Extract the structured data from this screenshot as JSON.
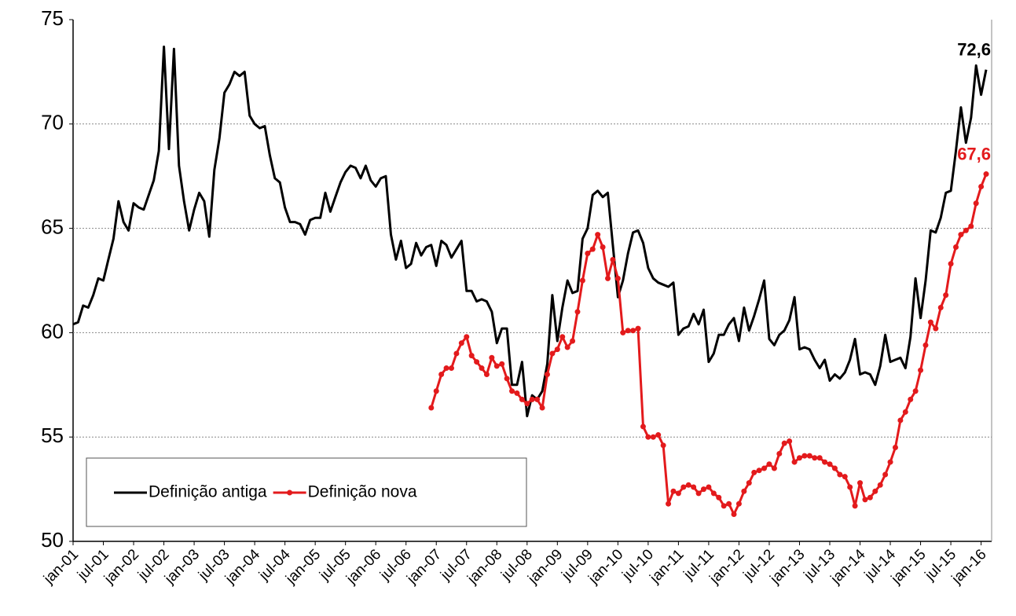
{
  "chart_data": {
    "type": "line",
    "categories": [
      "jan-01",
      null,
      null,
      null,
      null,
      null,
      "jul-01",
      null,
      null,
      null,
      null,
      null,
      "jan-02",
      null,
      null,
      null,
      null,
      null,
      "jul-02",
      null,
      null,
      null,
      null,
      null,
      "jan-03",
      null,
      null,
      null,
      null,
      null,
      "jul-03",
      null,
      null,
      null,
      null,
      null,
      "jan-04",
      null,
      null,
      null,
      null,
      null,
      "jul-04",
      null,
      null,
      null,
      null,
      null,
      "jan-05",
      null,
      null,
      null,
      null,
      null,
      "jul-05",
      null,
      null,
      null,
      null,
      null,
      "jan-06",
      null,
      null,
      null,
      null,
      null,
      "jul-06",
      null,
      null,
      null,
      null,
      null,
      "jan-07",
      null,
      null,
      null,
      null,
      null,
      "jul-07",
      null,
      null,
      null,
      null,
      null,
      "jan-08",
      null,
      null,
      null,
      null,
      null,
      "jul-08",
      null,
      null,
      null,
      null,
      null,
      "jan-09",
      null,
      null,
      null,
      null,
      null,
      "jul-09",
      null,
      null,
      null,
      null,
      null,
      "jan-10",
      null,
      null,
      null,
      null,
      null,
      "jul-10",
      null,
      null,
      null,
      null,
      null,
      "jan-11",
      null,
      null,
      null,
      null,
      null,
      "jul-11",
      null,
      null,
      null,
      null,
      null,
      "jan-12",
      null,
      null,
      null,
      null,
      null,
      "jul-12",
      null,
      null,
      null,
      null,
      null,
      "jan-13",
      null,
      null,
      null,
      null,
      null,
      "jul-13",
      null,
      null,
      null,
      null,
      null,
      "jan-14",
      null,
      null,
      null,
      null,
      null,
      "jul-14",
      null,
      null,
      null,
      null,
      null,
      "jan-15",
      null,
      null,
      null,
      null,
      null,
      "jul-15",
      null,
      null,
      null,
      null,
      null,
      "jan-16",
      null
    ],
    "series": [
      {
        "name": "Definição antiga",
        "color": "#000000",
        "markers": false,
        "values": [
          60.4,
          60.5,
          61.3,
          61.2,
          61.8,
          62.6,
          62.5,
          63.5,
          64.5,
          66.3,
          65.3,
          64.9,
          66.2,
          66.0,
          65.9,
          66.6,
          67.3,
          68.7,
          73.7,
          68.8,
          73.6,
          68.0,
          66.3,
          64.9,
          65.9,
          66.7,
          66.3,
          64.6,
          67.8,
          69.3,
          71.5,
          71.9,
          72.5,
          72.3,
          72.5,
          70.4,
          70.0,
          69.8,
          69.9,
          68.5,
          67.4,
          67.2,
          66.0,
          65.3,
          65.3,
          65.2,
          64.7,
          65.4,
          65.5,
          65.5,
          66.7,
          65.8,
          66.5,
          67.2,
          67.7,
          68.0,
          67.9,
          67.4,
          68.0,
          67.3,
          67.0,
          67.4,
          67.5,
          64.7,
          63.5,
          64.4,
          63.1,
          63.3,
          64.3,
          63.7,
          64.1,
          64.2,
          63.2,
          64.4,
          64.2,
          63.6,
          64.0,
          64.4,
          62.0,
          62.0,
          61.5,
          61.6,
          61.5,
          61.0,
          59.5,
          60.2,
          60.2,
          57.5,
          57.5,
          58.6,
          56.0,
          57.0,
          56.8,
          57.2,
          58.5,
          61.8,
          59.6,
          61.2,
          62.5,
          61.9,
          62.0,
          64.5,
          65.0,
          66.6,
          66.8,
          66.5,
          66.7,
          64.2,
          61.7,
          62.5,
          63.8,
          64.8,
          64.9,
          64.3,
          63.1,
          62.6,
          62.4,
          62.3,
          62.2,
          62.4,
          59.9,
          60.2,
          60.3,
          60.9,
          60.4,
          61.1,
          58.6,
          59.0,
          59.9,
          59.9,
          60.4,
          60.7,
          59.6,
          61.2,
          60.1,
          60.8,
          61.6,
          62.5,
          59.7,
          59.4,
          59.9,
          60.1,
          60.6,
          61.7,
          59.2,
          59.3,
          59.2,
          58.7,
          58.3,
          58.7,
          57.7,
          58.0,
          57.8,
          58.1,
          58.7,
          59.7,
          58.0,
          58.1,
          58.0,
          57.5,
          58.4,
          59.9,
          58.6,
          58.7,
          58.8,
          58.3,
          59.8,
          62.6,
          60.7,
          62.5,
          64.9,
          64.8,
          65.5,
          66.7,
          66.8,
          68.7,
          70.8,
          69.1,
          70.3,
          72.8,
          71.4,
          72.6
        ],
        "value_labels": [
          null,
          null,
          null,
          null,
          null,
          null,
          null,
          null,
          null,
          null,
          null,
          null,
          null,
          null,
          null,
          null,
          null,
          null,
          null,
          null,
          null,
          null,
          null,
          null,
          null,
          null,
          null,
          null,
          null,
          null,
          null,
          null,
          null,
          null,
          null,
          null,
          null,
          null,
          null,
          null,
          null,
          null,
          null,
          null,
          null,
          null,
          null,
          null,
          null,
          null,
          null,
          null,
          null,
          null,
          null,
          null,
          null,
          null,
          null,
          null,
          null,
          null,
          null,
          null,
          null,
          null,
          null,
          null,
          null,
          null,
          null,
          null,
          null,
          null,
          null,
          null,
          null,
          null,
          null,
          null,
          null,
          null,
          null,
          null,
          null,
          null,
          null,
          null,
          null,
          null,
          null,
          null,
          null,
          null,
          null,
          null,
          null,
          null,
          null,
          null,
          null,
          null,
          null,
          null,
          null,
          null,
          null,
          null,
          null,
          null,
          null,
          null,
          null,
          null,
          null,
          null,
          null,
          null,
          null,
          null,
          null,
          null,
          null,
          null,
          null,
          null,
          null,
          null,
          null,
          null,
          null,
          null,
          null,
          null,
          null,
          null,
          null,
          null,
          null,
          null,
          null,
          null,
          null,
          null,
          null,
          null,
          null,
          null,
          null,
          null,
          null,
          null,
          null,
          null,
          null,
          null,
          null,
          null,
          null,
          null,
          null,
          null,
          null,
          null,
          null,
          null,
          null,
          null,
          null,
          null,
          null,
          null,
          null,
          null,
          null,
          null,
          null,
          null,
          null,
          null,
          null,
          "72,6"
        ]
      },
      {
        "name": "Definição nova",
        "color": "#e31a1c",
        "markers": true,
        "values": [
          null,
          null,
          null,
          null,
          null,
          null,
          null,
          null,
          null,
          null,
          null,
          null,
          null,
          null,
          null,
          null,
          null,
          null,
          null,
          null,
          null,
          null,
          null,
          null,
          null,
          null,
          null,
          null,
          null,
          null,
          null,
          null,
          null,
          null,
          null,
          null,
          null,
          null,
          null,
          null,
          null,
          null,
          null,
          null,
          null,
          null,
          null,
          null,
          null,
          null,
          null,
          null,
          null,
          null,
          null,
          null,
          null,
          null,
          null,
          null,
          null,
          null,
          null,
          null,
          null,
          null,
          null,
          null,
          null,
          null,
          null,
          56.4,
          57.2,
          58.0,
          58.3,
          58.3,
          59.0,
          59.5,
          59.8,
          58.9,
          58.6,
          58.3,
          58.0,
          58.8,
          58.4,
          58.5,
          57.8,
          57.2,
          57.1,
          56.8,
          56.6,
          56.8,
          56.8,
          56.4,
          58.0,
          59.0,
          59.2,
          59.8,
          59.3,
          59.6,
          61.0,
          62.5,
          63.8,
          64.0,
          64.7,
          64.1,
          62.6,
          63.5,
          62.6,
          60.0,
          60.1,
          60.1,
          60.2,
          55.5,
          55.0,
          55.0,
          55.1,
          54.6,
          51.8,
          52.4,
          52.3,
          52.6,
          52.7,
          52.6,
          52.3,
          52.5,
          52.6,
          52.3,
          52.1,
          51.7,
          51.8,
          51.3,
          51.8,
          52.4,
          52.8,
          53.3,
          53.4,
          53.5,
          53.7,
          53.5,
          54.2,
          54.7,
          54.8,
          53.8,
          54.0,
          54.1,
          54.1,
          54.0,
          54.0,
          53.8,
          53.7,
          53.5,
          53.2,
          53.1,
          52.6,
          51.7,
          52.8,
          52.0,
          52.1,
          52.4,
          52.7,
          53.2,
          53.8,
          54.5,
          55.8,
          56.2,
          56.8,
          57.2,
          58.2,
          59.4,
          60.5,
          60.2,
          61.2,
          61.8,
          63.3,
          64.1,
          64.7,
          64.9,
          65.1,
          66.2,
          67.0,
          67.6
        ],
        "value_labels": [
          null,
          null,
          null,
          null,
          null,
          null,
          null,
          null,
          null,
          null,
          null,
          null,
          null,
          null,
          null,
          null,
          null,
          null,
          null,
          null,
          null,
          null,
          null,
          null,
          null,
          null,
          null,
          null,
          null,
          null,
          null,
          null,
          null,
          null,
          null,
          null,
          null,
          null,
          null,
          null,
          null,
          null,
          null,
          null,
          null,
          null,
          null,
          null,
          null,
          null,
          null,
          null,
          null,
          null,
          null,
          null,
          null,
          null,
          null,
          null,
          null,
          null,
          null,
          null,
          null,
          null,
          null,
          null,
          null,
          null,
          null,
          null,
          null,
          null,
          null,
          null,
          null,
          null,
          null,
          null,
          null,
          null,
          null,
          null,
          null,
          null,
          null,
          null,
          null,
          null,
          null,
          null,
          null,
          null,
          null,
          null,
          null,
          null,
          null,
          null,
          null,
          null,
          null,
          null,
          null,
          null,
          null,
          null,
          null,
          null,
          null,
          null,
          null,
          null,
          null,
          null,
          null,
          null,
          null,
          null,
          null,
          null,
          null,
          null,
          null,
          null,
          null,
          null,
          null,
          null,
          null,
          null,
          null,
          null,
          null,
          null,
          null,
          null,
          null,
          null,
          null,
          null,
          null,
          null,
          null,
          null,
          null,
          null,
          null,
          null,
          null,
          null,
          null,
          null,
          null,
          null,
          null,
          null,
          null,
          null,
          null,
          null,
          null,
          null,
          null,
          null,
          null,
          null,
          null,
          null,
          null,
          null,
          null,
          null,
          null,
          null,
          null,
          null,
          null,
          null,
          null,
          "67,6"
        ]
      }
    ],
    "ylim": [
      50,
      75
    ],
    "yticks": [
      50,
      55,
      60,
      65,
      70,
      75
    ],
    "grid": true,
    "legend": "lower left"
  }
}
